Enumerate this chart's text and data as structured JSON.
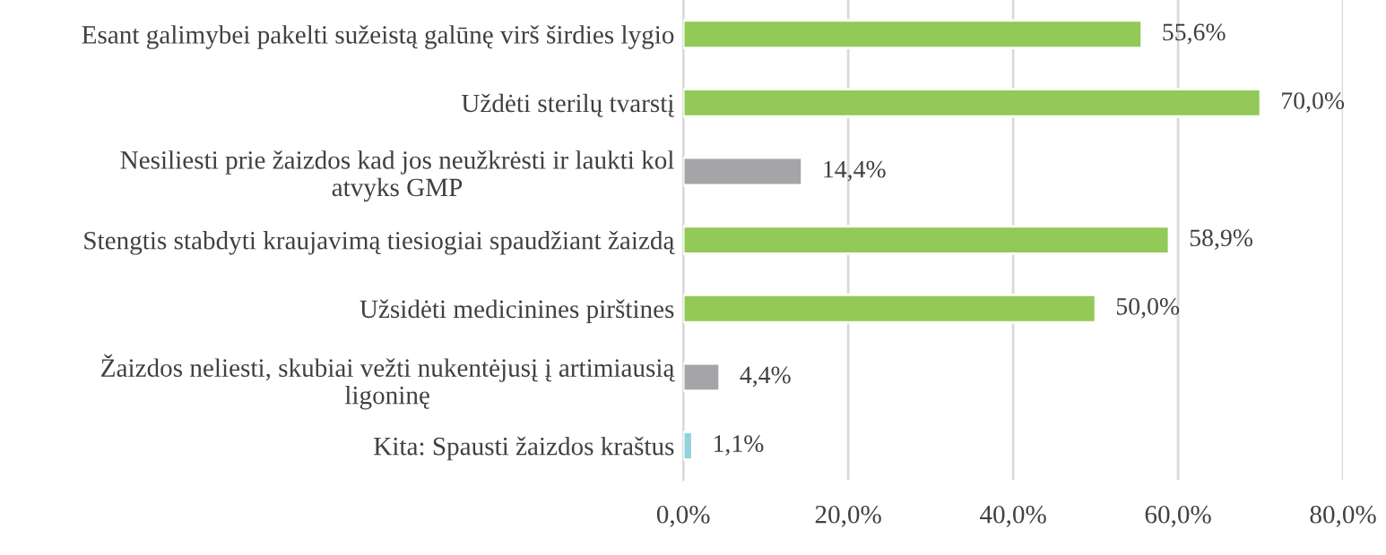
{
  "chart_data": {
    "type": "bar",
    "orientation": "horizontal",
    "categories": [
      "Esant galimybei pakelti sužeistą galūnę virš širdies lygio",
      "Uždėti sterilų tvarstį",
      "Nesiliesti prie žaizdos kad jos neužkrėsti ir laukti kol\natvyks GMP",
      "Stengtis stabdyti kraujavimą tiesiogiai spaudžiant žaizdą",
      "Užsidėti medicinines pirštines",
      "Žaizdos neliesti, skubiai vežti nukentėjusį į artimiausią\nligoninę",
      "Kita: Spausti žaizdos kraštus"
    ],
    "values": [
      55.6,
      70.0,
      14.4,
      58.9,
      50.0,
      4.4,
      1.1
    ],
    "value_labels": [
      "55,6%",
      "70,0%",
      "14,4%",
      "58,9%",
      "50,0%",
      "4,4%",
      "1,1%"
    ],
    "colors": [
      "#92c957",
      "#92c957",
      "#a5a5a8",
      "#92c957",
      "#92c957",
      "#a5a5a8",
      "#92d2dc"
    ],
    "xlim": [
      0,
      80
    ],
    "xticks": [
      {
        "value": 0,
        "label": "0,0%"
      },
      {
        "value": 20,
        "label": "20,0%"
      },
      {
        "value": 40,
        "label": "40,0%"
      },
      {
        "value": 60,
        "label": "60,0%"
      },
      {
        "value": 80,
        "label": "80,0%"
      }
    ],
    "grid": "x",
    "legend": false
  }
}
